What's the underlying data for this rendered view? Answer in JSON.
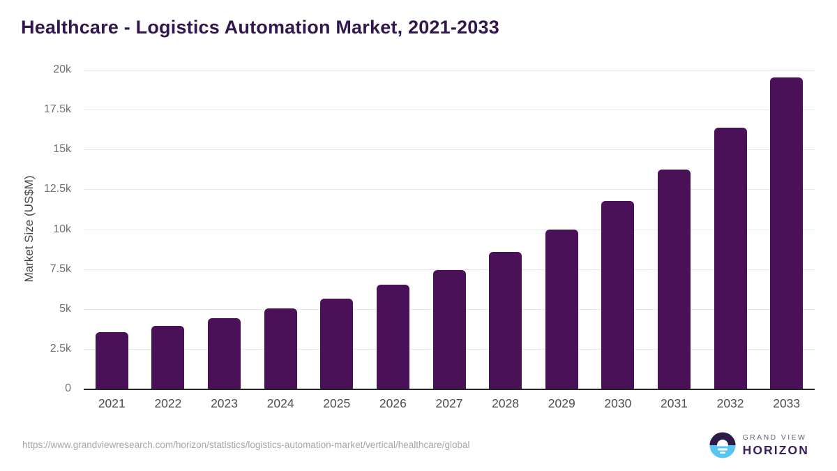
{
  "title": "Healthcare - Logistics Automation Market, 2021-2033",
  "chart_data": {
    "type": "bar",
    "title": "Healthcare - Logistics Automation Market, 2021-2033",
    "categories": [
      "2021",
      "2022",
      "2023",
      "2024",
      "2025",
      "2026",
      "2027",
      "2028",
      "2029",
      "2030",
      "2031",
      "2032",
      "2033"
    ],
    "values": [
      3560,
      3950,
      4440,
      5020,
      5650,
      6500,
      7420,
      8560,
      10000,
      11760,
      13760,
      16350,
      19500
    ],
    "unit": "US$M",
    "ylabel": "Market Size (US$M)",
    "xlabel": "",
    "ylim": [
      0,
      20000
    ],
    "ytick_values": [
      0,
      2500,
      5000,
      7500,
      10000,
      12500,
      15000,
      17500,
      20000
    ],
    "ytick_labels": [
      "0",
      "2.5k",
      "5k",
      "7.5k",
      "10k",
      "12.5k",
      "15k",
      "17.5k",
      "20k"
    ],
    "grid": "horizontal-only",
    "legend": "none",
    "bar_corner_radius": 6
  },
  "colors": {
    "title": "#32174D",
    "bar": "#4A1158",
    "axis_line": "#262626",
    "gridline": "#E8E8E8",
    "tick_label": "#707070",
    "x_tick_label": "#4D4D4D",
    "axis_title": "#424242",
    "url_text": "#A5A5A5",
    "logo_purple": "#2E1A47",
    "logo_blue": "#56C5F2",
    "logo_grandview_text": "#63606F",
    "logo_horizon_text": "#3A1D5C"
  },
  "footer": {
    "source_url": "https://www.grandviewresearch.com/horizon/statistics/logistics-automation-market/vertical/healthcare/global",
    "logo": {
      "line1": "GRAND VIEW",
      "line2": "HORIZON"
    }
  }
}
